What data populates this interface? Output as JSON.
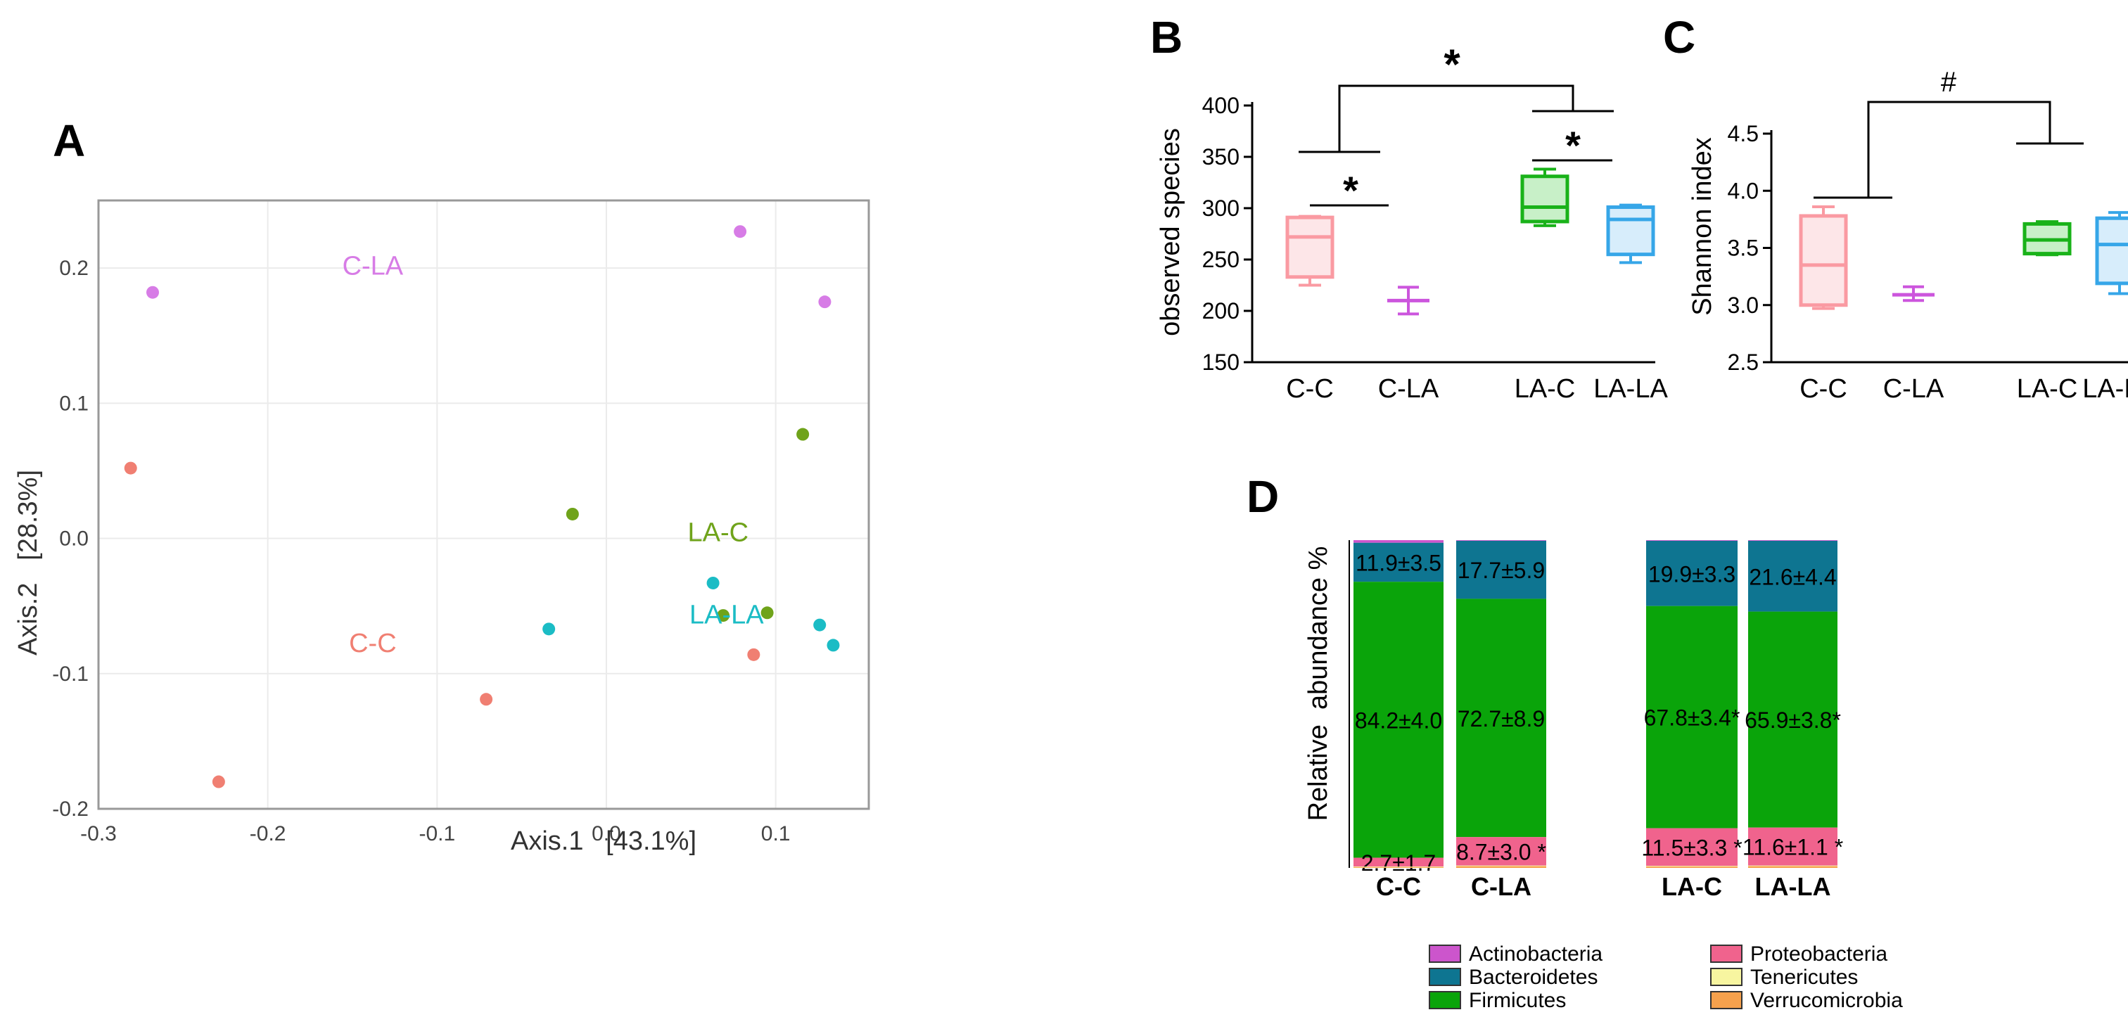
{
  "panels": {
    "a": "A",
    "b": "B",
    "c": "C",
    "d": "D"
  },
  "colors": {
    "cc": "#f07f72",
    "cla": "#d77ce6",
    "lac": "#6fa31a",
    "lala": "#1bbcc5",
    "cc_box": "#fa9aa2",
    "cla_box": "#cc55dd",
    "lac_box": "#19b219",
    "lala_box": "#36a6e8",
    "actinobacteria": "#cc55cc",
    "bacteroidetes": "#0e7591",
    "firmicutes": "#0aa40a",
    "proteobacteria": "#f0638d",
    "tenericutes": "#f7f5a0",
    "verrucomicrobia": "#f5a14d"
  },
  "chart_data": [
    {
      "id": "A",
      "type": "scatter",
      "title": "",
      "xlabel": "Axis.1   [43.1%]",
      "ylabel": "Axis.2   [28.3%]",
      "xlim": [
        -0.3,
        0.155
      ],
      "ylim": [
        -0.2,
        0.25
      ],
      "xticks": [
        -0.3,
        -0.2,
        -0.1,
        0.0,
        0.1
      ],
      "xtick_labels": [
        "-0.3",
        "-0.2",
        "-0.1",
        "0.0",
        "0.1"
      ],
      "yticks": [
        -0.2,
        -0.1,
        0.0,
        0.1,
        0.2
      ],
      "ytick_labels": [
        "-0.2",
        "-0.1",
        "0.0",
        "0.1",
        "0.2"
      ],
      "grid": true,
      "series": [
        {
          "name": "C-LA",
          "color": "#d77ce6",
          "label_pos": [
            -0.138,
            0.195
          ],
          "points": [
            [
              -0.268,
              0.182
            ],
            [
              0.079,
              0.227
            ],
            [
              0.129,
              0.175
            ]
          ]
        },
        {
          "name": "C-C",
          "color": "#f07f72",
          "label_pos": [
            -0.138,
            -0.084
          ],
          "points": [
            [
              -0.281,
              0.052
            ],
            [
              -0.229,
              -0.18
            ],
            [
              -0.071,
              -0.119
            ],
            [
              0.087,
              -0.086
            ]
          ]
        },
        {
          "name": "LA-C",
          "color": "#6fa31a",
          "label_pos": [
            0.066,
            -0.002
          ],
          "points": [
            [
              -0.02,
              0.018
            ],
            [
              0.116,
              0.077
            ],
            [
              0.069,
              -0.057
            ],
            [
              0.095,
              -0.055
            ]
          ]
        },
        {
          "name": "LA-LA",
          "color": "#1bbcc5",
          "label_pos": [
            0.071,
            -0.063
          ],
          "points": [
            [
              -0.034,
              -0.067
            ],
            [
              0.063,
              -0.033
            ],
            [
              0.126,
              -0.064
            ],
            [
              0.134,
              -0.079
            ]
          ]
        }
      ]
    },
    {
      "id": "B",
      "type": "box",
      "ylabel": "observed species",
      "ylim": [
        150,
        400
      ],
      "yticks": [
        150,
        200,
        250,
        300,
        350,
        400
      ],
      "categories": [
        "C-C",
        "C-LA",
        "LA-C",
        "LA-LA"
      ],
      "boxes": [
        {
          "name": "C-C",
          "min": 225,
          "q1": 233,
          "median": 272,
          "q3": 291,
          "max": 292
        },
        {
          "name": "C-LA",
          "min": 197,
          "q1": 207,
          "median": 210,
          "q3": 213,
          "max": 223
        },
        {
          "name": "LA-C",
          "min": 283,
          "q1": 287,
          "median": 301,
          "q3": 331,
          "max": 338
        },
        {
          "name": "LA-LA",
          "min": 247,
          "q1": 255,
          "median": 289,
          "q3": 301,
          "max": 303
        }
      ],
      "annotations": [
        "*",
        "*",
        "*"
      ]
    },
    {
      "id": "C",
      "type": "box",
      "ylabel": "Shannon index",
      "ylim": [
        2.5,
        4.5
      ],
      "yticks": [
        2.5,
        3.0,
        3.5,
        4.0,
        4.5
      ],
      "ytick_labels": [
        "2.5",
        "3.0",
        "3.5",
        "4.0",
        "4.5"
      ],
      "categories": [
        "C-C",
        "C-LA",
        "LA-C",
        "LA-LA"
      ],
      "boxes": [
        {
          "name": "C-C",
          "min": 2.97,
          "q1": 3.0,
          "median": 3.35,
          "q3": 3.78,
          "max": 3.86
        },
        {
          "name": "C-LA",
          "min": 3.04,
          "q1": 3.07,
          "median": 3.09,
          "q3": 3.12,
          "max": 3.16
        },
        {
          "name": "LA-C",
          "min": 3.44,
          "q1": 3.45,
          "median": 3.57,
          "q3": 3.71,
          "max": 3.73
        },
        {
          "name": "LA-LA",
          "min": 3.1,
          "q1": 3.19,
          "median": 3.53,
          "q3": 3.76,
          "max": 3.81
        }
      ],
      "annotations": [
        "#"
      ]
    },
    {
      "id": "D",
      "type": "stacked-bar",
      "ylabel": "Relative  abundance %",
      "categories": [
        "C-C",
        "C-LA",
        "LA-C",
        "LA-LA"
      ],
      "series": [
        {
          "name": "Actinobacteria",
          "color": "#cc55cc",
          "values": [
            0.8,
            0.2,
            0.2,
            0.2
          ]
        },
        {
          "name": "Bacteroidetes",
          "color": "#0e7591",
          "values": [
            11.9,
            17.7,
            19.9,
            21.6
          ]
        },
        {
          "name": "Firmicutes",
          "color": "#0aa40a",
          "values": [
            84.2,
            72.7,
            67.8,
            65.9
          ]
        },
        {
          "name": "Proteobacteria",
          "color": "#f0638d",
          "values": [
            2.7,
            8.7,
            11.5,
            11.6
          ]
        },
        {
          "name": "Tenericutes",
          "color": "#f7f5a0",
          "values": [
            0.2,
            0.2,
            0.2,
            0.2
          ]
        },
        {
          "name": "Verrucomicrobia",
          "color": "#f5a14d",
          "values": [
            0.2,
            0.5,
            0.4,
            0.5
          ]
        }
      ],
      "data_labels": [
        [
          "11.9±3.5",
          "84.2±4.0",
          "2.7±1.7"
        ],
        [
          "17.7±5.9",
          "72.7±8.9",
          "8.7±3.0 *"
        ],
        [
          "19.9±3.3",
          "67.8±3.4*",
          "11.5±3.3 *"
        ],
        [
          "21.6±4.4",
          "65.9±3.8*",
          "11.6±1.1 *"
        ]
      ],
      "legend": [
        "Actinobacteria",
        "Proteobacteria",
        "Bacteroidetes",
        "Tenericutes",
        "Firmicutes",
        "Verrucomicrobia"
      ]
    }
  ]
}
